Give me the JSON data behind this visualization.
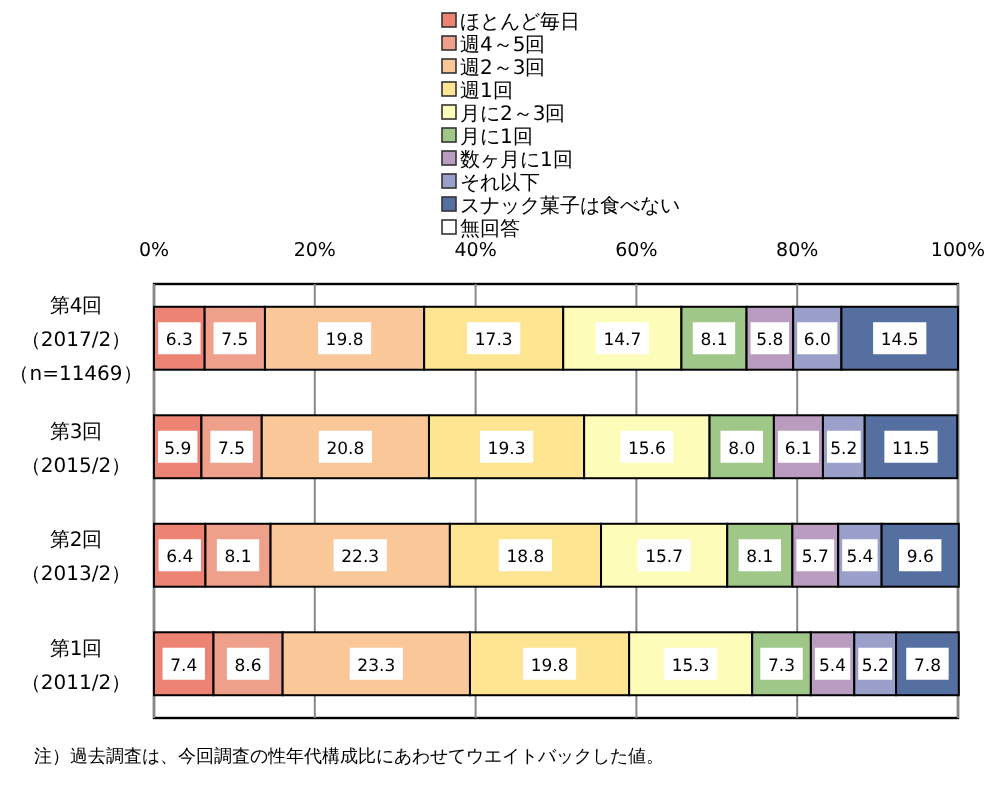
{
  "chart_data": {
    "type": "bar",
    "orientation": "horizontal",
    "stacked": true,
    "grid": "x",
    "legend": "top",
    "categories": [
      "第4回（2017/2）（n=11469）",
      "第3回（2015/2）",
      "第2回（2013/2）",
      "第1回（2011/2）"
    ],
    "xlim": [
      0,
      100
    ],
    "xticks": [
      {
        "value": 0,
        "label": "0%"
      },
      {
        "value": 20,
        "label": "20%"
      },
      {
        "value": 40,
        "label": "40%"
      },
      {
        "value": 60,
        "label": "60%"
      },
      {
        "value": 80,
        "label": "80%"
      },
      {
        "value": 100,
        "label": "100%"
      }
    ],
    "series": [
      {
        "name": "ほとんど毎日",
        "color": "#ec8373",
        "values": [
          6.3,
          5.9,
          6.4,
          7.4
        ],
        "value_labels": [
          "6.3",
          "5.9",
          "6.4",
          "7.4"
        ]
      },
      {
        "name": "週4～5回",
        "color": "#eea08a",
        "values": [
          7.5,
          7.5,
          8.1,
          8.6
        ],
        "value_labels": [
          "7.5",
          "7.5",
          "8.1",
          "8.6"
        ]
      },
      {
        "name": "週2～3回",
        "color": "#f9c798",
        "values": [
          19.8,
          20.8,
          22.3,
          23.3
        ],
        "value_labels": [
          "19.8",
          "20.8",
          "22.3",
          "23.3"
        ]
      },
      {
        "name": "週1回",
        "color": "#fde591",
        "values": [
          17.3,
          19.3,
          18.8,
          19.8
        ],
        "value_labels": [
          "17.3",
          "19.3",
          "18.8",
          "19.8"
        ]
      },
      {
        "name": "月に2～3回",
        "color": "#fefcb9",
        "values": [
          14.7,
          15.6,
          15.7,
          15.3
        ],
        "value_labels": [
          "14.7",
          "15.6",
          "15.7",
          "15.3"
        ]
      },
      {
        "name": "月に1回",
        "color": "#9fc788",
        "values": [
          8.1,
          8.0,
          8.1,
          7.3
        ],
        "value_labels": [
          "8.1",
          "8.0",
          "8.1",
          "7.3"
        ]
      },
      {
        "name": "数ヶ月に1回",
        "color": "#b99cbf",
        "values": [
          5.8,
          6.1,
          5.7,
          5.4
        ],
        "value_labels": [
          "5.8",
          "6.1",
          "5.7",
          "5.4"
        ]
      },
      {
        "name": "それ以下",
        "color": "#9aa0c9",
        "values": [
          6.0,
          5.2,
          5.4,
          5.2
        ],
        "value_labels": [
          "6.0",
          "5.2",
          "5.4",
          "5.2"
        ]
      },
      {
        "name": "スナック菓子は食べない",
        "color": "#566fa1",
        "values": [
          14.5,
          11.5,
          9.6,
          7.8
        ],
        "value_labels": [
          "14.5",
          "11.5",
          "9.6",
          "7.8"
        ]
      },
      {
        "name": "無回答",
        "color": "#ffffff",
        "values": [
          null,
          null,
          null,
          null
        ]
      }
    ],
    "annotations": [
      "注）過去調査は、今回調査の性年代構成比にあわせてウエイトバックした値。"
    ]
  }
}
